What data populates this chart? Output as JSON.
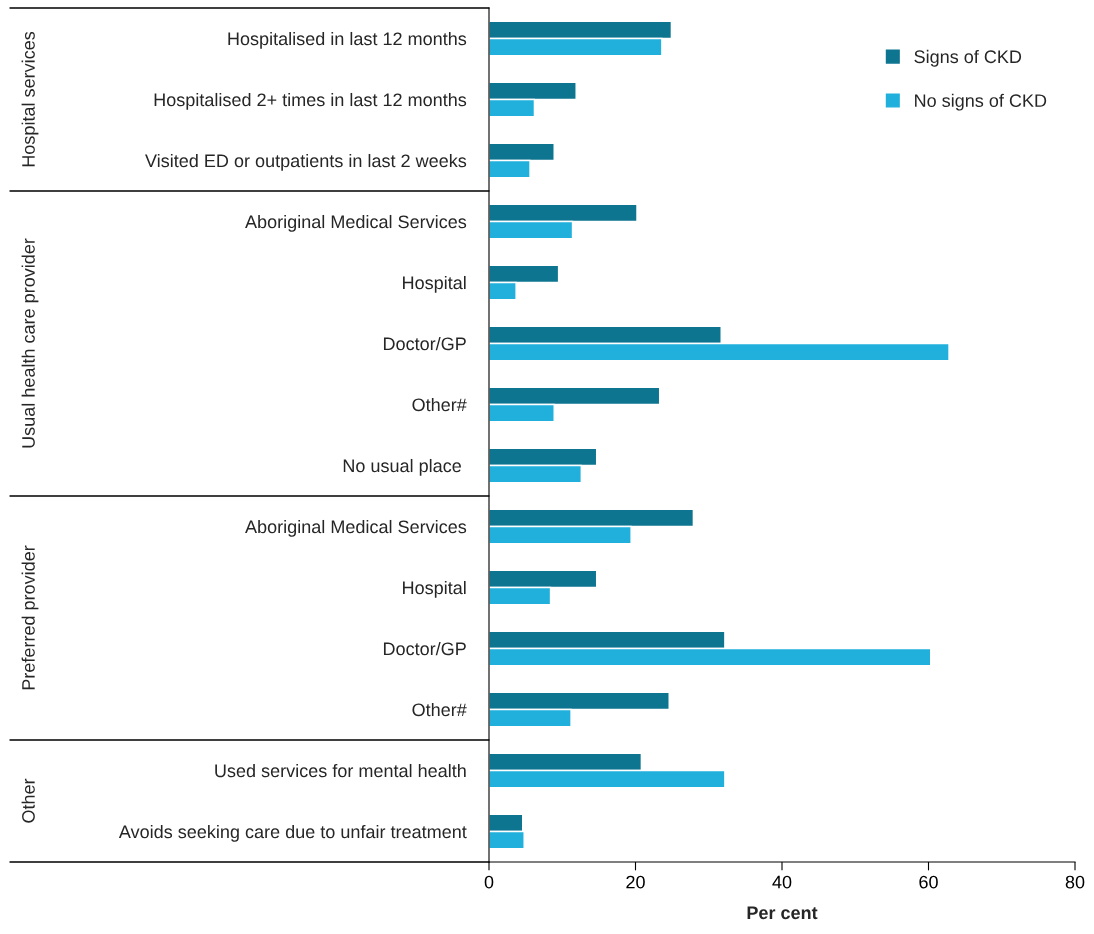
{
  "chart_data": {
    "type": "bar",
    "orientation": "horizontal",
    "xlabel": "Per cent",
    "categories": [
      "Hospitalised in last 12 months",
      "Hospitalised 2+ times in last 12 months",
      "Visited ED or outpatients in last 2 weeks",
      "Aboriginal Medical Services",
      "Hospital",
      "Doctor/GP",
      "Other#",
      "No usual place ",
      "Aboriginal Medical Services",
      "Hospital",
      "Doctor/GP",
      "Other#",
      "Used services for mental health",
      "Avoids seeking care due to unfair treatment"
    ],
    "series": [
      {
        "name": "Signs of CKD",
        "color": "#0e7591",
        "values": [
          24.9,
          11.9,
          8.9,
          20.2,
          9.5,
          31.7,
          23.3,
          14.7,
          27.9,
          14.7,
          32.2,
          24.6,
          20.8,
          4.6
        ]
      },
      {
        "name": "No signs of CKD",
        "color": "#21b0dc",
        "values": [
          23.6,
          6.2,
          5.6,
          11.4,
          3.7,
          62.8,
          8.9,
          12.6,
          19.4,
          8.4,
          60.3,
          11.2,
          32.2,
          4.8
        ]
      }
    ],
    "xlim": [
      0,
      80
    ],
    "xticks": [
      0,
      20,
      40,
      60,
      80
    ],
    "grid": false,
    "legend": "top right",
    "annotations": [
      "Hospital services",
      "Usual health care provider",
      "Preferred provider",
      "Other"
    ]
  }
}
